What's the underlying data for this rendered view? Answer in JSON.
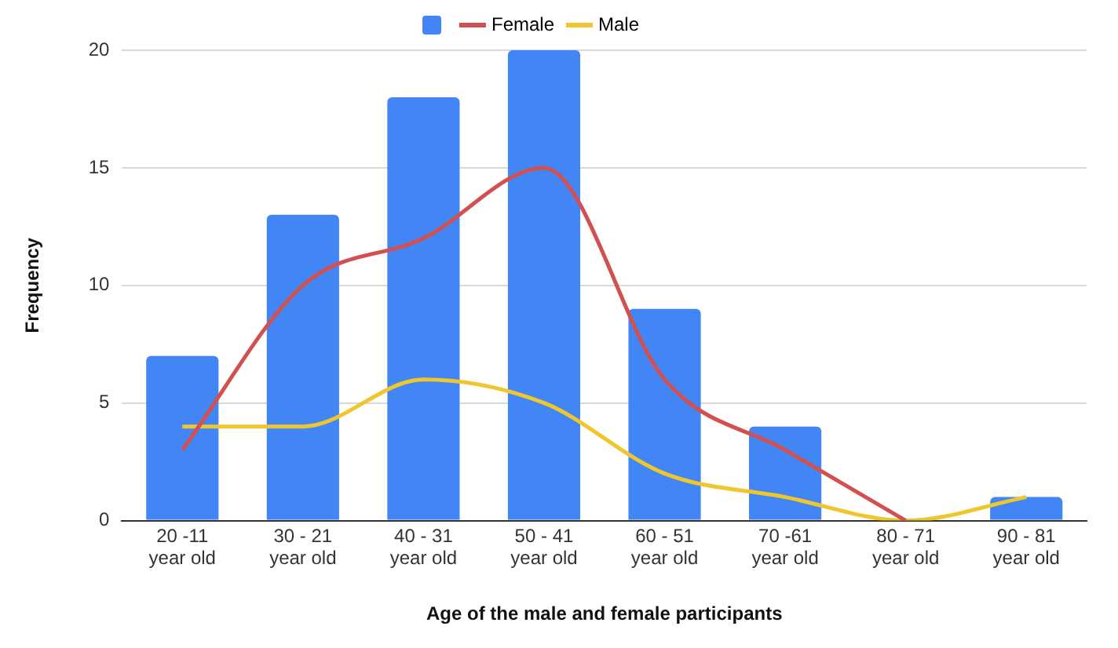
{
  "chart_data": {
    "type": "bar",
    "xlabel": "Age of the male and female participants",
    "ylabel": "Frequency",
    "categories": [
      [
        "20 -11",
        "year old"
      ],
      [
        "30 - 21",
        "year old"
      ],
      [
        "40 - 31",
        "year old"
      ],
      [
        "50 - 41",
        "year old"
      ],
      [
        "60 - 51",
        "year old"
      ],
      [
        "70 -61",
        "year old"
      ],
      [
        "80 - 71",
        "year old"
      ],
      [
        "90 - 81",
        "year old"
      ]
    ],
    "series": [
      {
        "color": "#4285f4",
        "values": [
          7,
          13,
          18,
          20,
          9,
          4,
          0,
          1
        ]
      },
      {
        "type": "line",
        "name": "Female",
        "color": "#d35050",
        "values": [
          3,
          10,
          12,
          15,
          6,
          3,
          0,
          null
        ]
      },
      {
        "type": "line",
        "name": "Male",
        "color": "#eec72e",
        "values": [
          4,
          4,
          6,
          5,
          2,
          1,
          0,
          1
        ]
      }
    ],
    "ylim": [
      0,
      20
    ],
    "yticks": [
      0,
      5,
      10,
      15,
      20
    ],
    "grid": "y",
    "legend": "top",
    "marker": "none"
  }
}
